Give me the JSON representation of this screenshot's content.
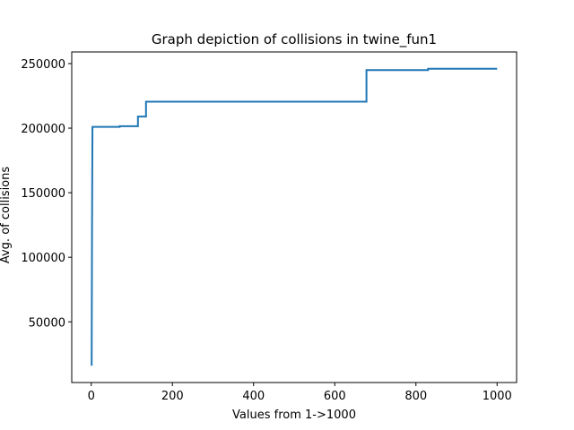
{
  "chart_data": {
    "type": "line",
    "title": "Graph depiction of collisions in twine_fun1",
    "xlabel": "Values from 1->1000",
    "ylabel": "Avg. of collisions",
    "xlim": [
      -48,
      1048
    ],
    "ylim": [
      3000,
      259000
    ],
    "xticks": [
      0,
      200,
      400,
      600,
      800,
      1000
    ],
    "yticks": [
      50000,
      100000,
      150000,
      200000,
      250000
    ],
    "grid": false,
    "legend": "none",
    "series": [
      {
        "color": "#1f77b4",
        "x": [
          1,
          2,
          3,
          70,
          70,
          115,
          115,
          135,
          135,
          678,
          678,
          830,
          830,
          1000
        ],
        "y": [
          16000,
          120000,
          201000,
          201000,
          201500,
          201500,
          209000,
          209000,
          220500,
          220500,
          245000,
          245000,
          246000,
          246000
        ]
      }
    ]
  }
}
